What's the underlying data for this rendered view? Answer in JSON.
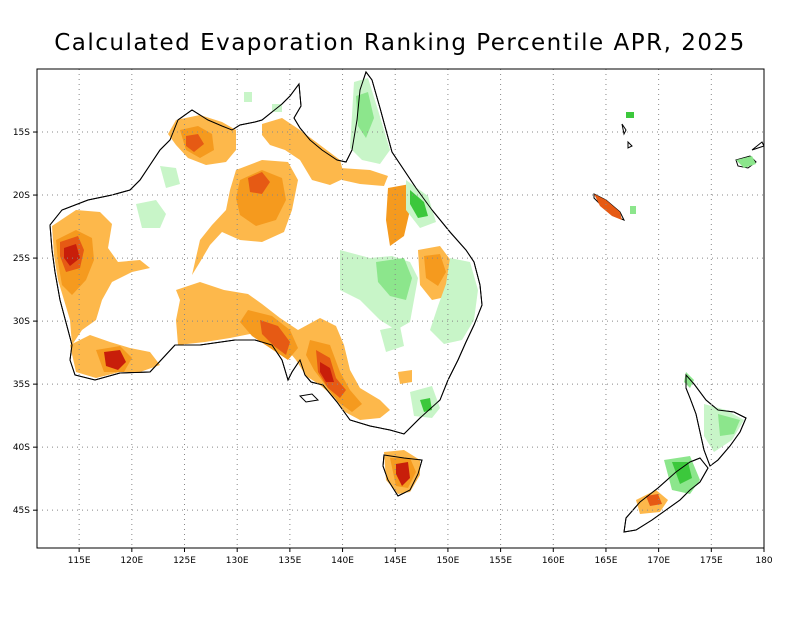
{
  "title": "Calculated Evaporation Ranking Percentile APR, 2025",
  "map": {
    "lon_range": [
      111,
      180
    ],
    "lat_range": [
      -48,
      -10
    ],
    "x_ticks": [
      {
        "lon": 115,
        "label": "115E"
      },
      {
        "lon": 120,
        "label": "120E"
      },
      {
        "lon": 125,
        "label": "125E"
      },
      {
        "lon": 130,
        "label": "130E"
      },
      {
        "lon": 135,
        "label": "135E"
      },
      {
        "lon": 140,
        "label": "140E"
      },
      {
        "lon": 145,
        "label": "145E"
      },
      {
        "lon": 150,
        "label": "150E"
      },
      {
        "lon": 155,
        "label": "155E"
      },
      {
        "lon": 160,
        "label": "160E"
      },
      {
        "lon": 165,
        "label": "165E"
      },
      {
        "lon": 170,
        "label": "170E"
      },
      {
        "lon": 175,
        "label": "175E"
      },
      {
        "lon": 180,
        "label": "180"
      }
    ],
    "y_ticks": [
      {
        "lat": -15,
        "label": "15S"
      },
      {
        "lat": -20,
        "label": "20S"
      },
      {
        "lat": -25,
        "label": "25S"
      },
      {
        "lat": -30,
        "label": "30S"
      },
      {
        "lat": -35,
        "label": "35S"
      },
      {
        "lat": -40,
        "label": "40S"
      },
      {
        "lat": -45,
        "label": "45S"
      }
    ],
    "colors": {
      "high_light": "#fdb84b",
      "high_mid": "#f59a1e",
      "high_strong": "#e65a14",
      "high_extreme": "#c81e0a",
      "low_light": "#c8f5c8",
      "low_mid": "#8ce68c",
      "low_strong": "#3cc83c",
      "grid": "#888888",
      "coast": "#000000"
    }
  }
}
